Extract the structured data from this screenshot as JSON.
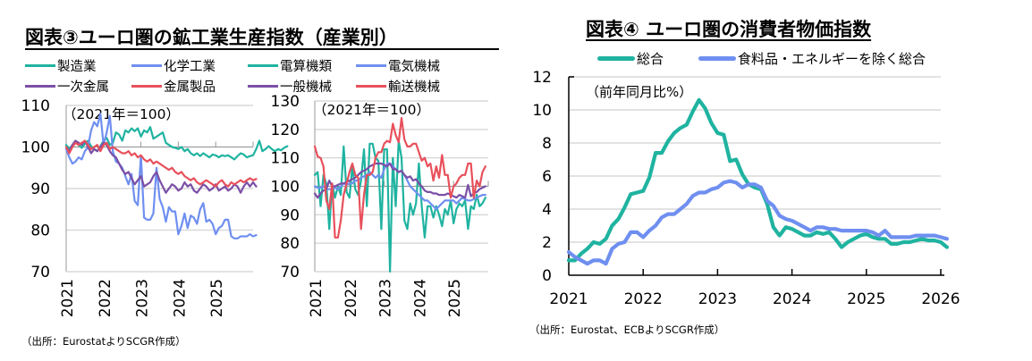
{
  "figure3": {
    "title": "図表③ユーロ圏の鉱工業生産指数（産業別）",
    "source": "（出所：EurostatよりSCGR作成）"
  },
  "figure4": {
    "title": "図表④ ユーロ圏の消費者物価指数",
    "source": "（出所：Eurostat、ECBよりSCGR作成）"
  },
  "colors": {
    "teal": "#1fb3a0",
    "blue": "#6f8ff0",
    "purple": "#7b4fa6",
    "red": "#e8505b",
    "grid": "#d9d9d9",
    "axis": "#888888"
  },
  "chart_data": [
    {
      "type": "line",
      "title": "図表③ユーロ圏の鉱工業生産指数（産業別） — 左パネル",
      "annotation": "（2021年＝100）",
      "xlabel": "",
      "ylabel": "",
      "xlim": [
        2021.0,
        2026.0
      ],
      "ylim": [
        70,
        110
      ],
      "yticks": [
        70,
        80,
        90,
        100,
        110
      ],
      "xticks": [
        "2021",
        "2022",
        "2023",
        "2024",
        "2025"
      ],
      "xtick_values": [
        2021,
        2022,
        2023,
        2024,
        2025
      ],
      "grid": true,
      "legend": "top",
      "x_start": 2021.0,
      "x_step": 0.0833333,
      "series": [
        {
          "name": "製造業",
          "color": "#1fb3a0",
          "values": [
            100.5,
            99.5,
            100.5,
            101.5,
            100.5,
            99.8,
            100.8,
            101.5,
            100.2,
            99.5,
            99.0,
            100.2,
            101.5,
            102.2,
            100.5,
            101.0,
            103.5,
            103.0,
            101.5,
            104.0,
            103.5,
            104.5,
            103.8,
            104.5,
            102.5,
            104.0,
            103.5,
            104.8,
            102.0,
            102.5,
            103.0,
            103.5,
            101.0,
            100.5,
            100.0,
            99.8,
            99.5,
            100.0,
            99.0,
            99.5,
            98.5,
            98.0,
            98.5,
            97.8,
            98.5,
            98.0,
            97.5,
            98.2,
            98.0,
            97.5,
            98.0,
            97.8,
            98.0,
            97.5,
            97.0,
            97.8,
            98.5,
            98.2,
            97.5,
            97.8,
            98.0,
            99.5,
            101.5,
            99.0,
            99.5,
            100.2,
            99.5,
            99.0,
            99.5,
            99.2,
            99.8,
            100.2
          ]
        },
        {
          "name": "化学工業",
          "color": "#6f8ff0",
          "values": [
            99.5,
            97.5,
            96.0,
            96.5,
            97.5,
            97.0,
            99.0,
            100.0,
            104.0,
            106.0,
            105.0,
            108.0,
            100.5,
            103.5,
            107.5,
            99.0,
            96.5,
            96.0,
            95.0,
            93.0,
            91.0,
            93.5,
            87.0,
            86.0,
            98.0,
            83.0,
            82.5,
            82.5,
            84.0,
            95.0,
            87.5,
            85.5,
            82.0,
            85.5,
            84.5,
            84.5,
            79.0,
            81.0,
            84.0,
            80.5,
            83.5,
            83.0,
            81.5,
            85.0,
            86.5,
            82.0,
            82.5,
            81.5,
            79.0,
            80.5,
            81.0,
            82.5,
            82.5,
            78.5,
            78.0,
            78.0,
            78.5,
            78.5,
            78.5,
            79.0,
            78.5,
            78.8
          ]
        },
        {
          "name": "一次金属",
          "color": "#7b4fa6",
          "values": [
            100.0,
            99.0,
            100.5,
            101.5,
            101.0,
            100.5,
            101.5,
            100.0,
            98.5,
            99.5,
            99.0,
            100.0,
            101.0,
            100.5,
            99.0,
            98.0,
            97.5,
            96.0,
            94.5,
            93.5,
            94.0,
            92.5,
            91.0,
            92.0,
            93.0,
            90.5,
            91.0,
            91.5,
            93.0,
            94.0,
            92.0,
            90.5,
            89.0,
            90.0,
            91.0,
            90.5,
            89.5,
            90.0,
            91.5,
            90.5,
            91.0,
            89.5,
            89.0,
            90.0,
            91.0,
            90.5,
            89.5,
            90.0,
            91.0,
            89.5,
            90.0,
            90.5,
            89.5,
            90.0,
            91.0,
            90.5,
            89.0,
            90.5,
            91.5,
            90.5,
            91.5,
            90.5
          ]
        },
        {
          "name": "金属製品",
          "color": "#e8505b",
          "values": [
            100.0,
            98.5,
            100.0,
            101.0,
            100.5,
            101.0,
            101.5,
            100.5,
            99.5,
            100.0,
            100.5,
            99.0,
            100.5,
            101.0,
            99.5,
            100.0,
            99.5,
            99.0,
            98.5,
            98.5,
            99.0,
            98.0,
            98.5,
            97.5,
            98.0,
            97.0,
            96.5,
            97.0,
            96.0,
            96.5,
            96.0,
            95.5,
            95.0,
            94.5,
            95.0,
            94.0,
            93.5,
            94.0,
            93.0,
            92.5,
            92.0,
            92.5,
            91.5,
            91.0,
            91.5,
            92.0,
            91.5,
            91.0,
            90.5,
            91.5,
            92.0,
            91.0,
            90.5,
            91.5,
            91.0,
            91.5,
            92.0,
            91.5,
            92.0,
            92.5,
            92.0,
            92.3
          ]
        }
      ]
    },
    {
      "type": "line",
      "title": "図表③ユーロ圏の鉱工業生産指数（産業別） — 右パネル",
      "annotation": "（2021年＝100）",
      "xlabel": "",
      "ylabel": "",
      "xlim": [
        2021.0,
        2026.0
      ],
      "ylim": [
        70,
        130
      ],
      "yticks": [
        70,
        80,
        90,
        100,
        110,
        120,
        130
      ],
      "xticks": [
        "2021",
        "2022",
        "2023",
        "2024",
        "2025"
      ],
      "xtick_values": [
        2021,
        2022,
        2023,
        2024,
        2025
      ],
      "grid": true,
      "legend": "top",
      "x_start": 2021.0,
      "x_step": 0.0833333,
      "series": [
        {
          "name": "電算機類",
          "color": "#1fb3a0",
          "values": [
            104,
            105,
            93,
            104,
            101,
            85,
            101,
            96,
            100,
            97,
            114,
            98,
            96,
            107,
            99,
            97,
            102,
            113,
            93,
            115,
            115,
            110,
            109,
            85,
            113,
            113,
            68,
            110,
            93,
            116,
            110,
            88,
            85,
            94,
            90,
            94,
            108,
            93,
            82,
            93,
            93,
            89,
            93,
            90,
            86,
            92,
            90,
            95,
            87,
            92,
            94,
            93,
            95,
            85,
            93,
            92,
            97,
            93,
            94,
            96
          ]
        },
        {
          "name": "電気機械",
          "color": "#6f8ff0",
          "values": [
            100,
            99.5,
            99.5,
            100,
            99,
            99,
            99,
            99.5,
            99,
            100,
            101,
            100.5,
            101,
            101,
            102,
            102,
            103,
            103.5,
            104,
            105,
            104,
            103,
            104,
            103,
            106,
            108,
            108,
            107,
            106,
            105,
            105.5,
            104,
            102,
            100,
            99,
            98,
            97,
            96,
            95,
            95,
            94,
            93,
            92,
            93,
            94,
            95,
            95,
            95,
            95,
            94,
            95,
            96,
            95.5,
            95,
            95,
            95.5,
            96,
            96.5,
            97,
            97
          ]
        },
        {
          "name": "一般機械",
          "color": "#7b4fa6",
          "values": [
            97.5,
            96,
            97.5,
            98.5,
            99,
            102,
            100,
            100,
            100.5,
            101,
            101,
            101.5,
            102,
            102.5,
            103,
            104,
            105,
            105.5,
            106,
            107,
            107.5,
            108,
            108,
            108,
            107.5,
            107,
            108,
            106,
            106,
            105,
            105.5,
            104,
            103,
            103.5,
            102,
            102.5,
            101,
            100,
            98.5,
            98,
            98,
            97.5,
            97.5,
            97,
            97,
            97,
            97.5,
            97,
            96.5,
            96,
            97,
            96.5,
            96,
            100.5,
            96.5,
            97.5,
            98,
            99,
            99.5,
            100
          ]
        },
        {
          "name": "輸送機械",
          "color": "#e8505b",
          "values": [
            114,
            110.5,
            110,
            107,
            95,
            92,
            101,
            82,
            82,
            88,
            97,
            101,
            105,
            108,
            104,
            103,
            85,
            97,
            104,
            104,
            105,
            110,
            112,
            112,
            115,
            116,
            115.5,
            122,
            118,
            115.5,
            124,
            116.5,
            114,
            114,
            115,
            115,
            112,
            109,
            110,
            107,
            108,
            102,
            107,
            103,
            111,
            104,
            104,
            96,
            100,
            101,
            103,
            104,
            104,
            108,
            108,
            96,
            102,
            100,
            105,
            107
          ]
        }
      ]
    },
    {
      "type": "line",
      "title": "図表④ ユーロ圏の消費者物価指数",
      "annotation": "（前年同月比%）",
      "xlabel": "",
      "ylabel": "",
      "xlim": [
        2021.0,
        2026.0
      ],
      "ylim": [
        0,
        12
      ],
      "yticks": [
        0,
        2,
        4,
        6,
        8,
        10,
        12
      ],
      "xticks": [
        "2021",
        "2022",
        "2023",
        "2024",
        "2025",
        "2026"
      ],
      "xtick_values": [
        2021,
        2022,
        2023,
        2024,
        2025,
        2026
      ],
      "grid": true,
      "legend": "top",
      "x_start": 2021.0,
      "x_step": 0.0833333,
      "series": [
        {
          "name": "総合",
          "color": "#1fb3a0",
          "values": [
            0.9,
            0.9,
            1.3,
            1.6,
            2.0,
            1.9,
            2.2,
            3.0,
            3.4,
            4.1,
            4.9,
            5.0,
            5.1,
            5.9,
            7.4,
            7.4,
            8.1,
            8.6,
            8.9,
            9.1,
            9.9,
            10.6,
            10.1,
            9.2,
            8.6,
            8.5,
            6.9,
            7.0,
            6.1,
            5.5,
            5.3,
            5.2,
            4.3,
            2.9,
            2.4,
            2.9,
            2.8,
            2.6,
            2.4,
            2.4,
            2.6,
            2.5,
            2.6,
            2.2,
            1.7,
            2.0,
            2.2,
            2.4,
            2.5,
            2.3,
            2.2,
            2.2,
            1.9,
            1.9,
            2.0,
            2.0,
            2.1,
            2.2,
            2.1,
            2.1,
            2.0,
            1.7
          ]
        },
        {
          "name": "食料品・エネルギーを除く総合",
          "color": "#6f8ff0",
          "values": [
            1.4,
            1.1,
            0.9,
            0.7,
            0.9,
            0.9,
            0.7,
            1.6,
            1.9,
            2.0,
            2.6,
            2.6,
            2.3,
            2.7,
            3.0,
            3.5,
            3.7,
            3.7,
            4.0,
            4.3,
            4.8,
            5.0,
            5.0,
            5.2,
            5.3,
            5.6,
            5.7,
            5.6,
            5.3,
            5.5,
            5.5,
            5.3,
            4.5,
            4.2,
            3.6,
            3.4,
            3.3,
            3.1,
            2.9,
            2.7,
            2.9,
            2.9,
            2.8,
            2.8,
            2.7,
            2.7,
            2.7,
            2.7,
            2.7,
            2.6,
            2.4,
            2.7,
            2.3,
            2.3,
            2.3,
            2.3,
            2.4,
            2.4,
            2.4,
            2.4,
            2.3,
            2.2
          ]
        }
      ]
    }
  ]
}
